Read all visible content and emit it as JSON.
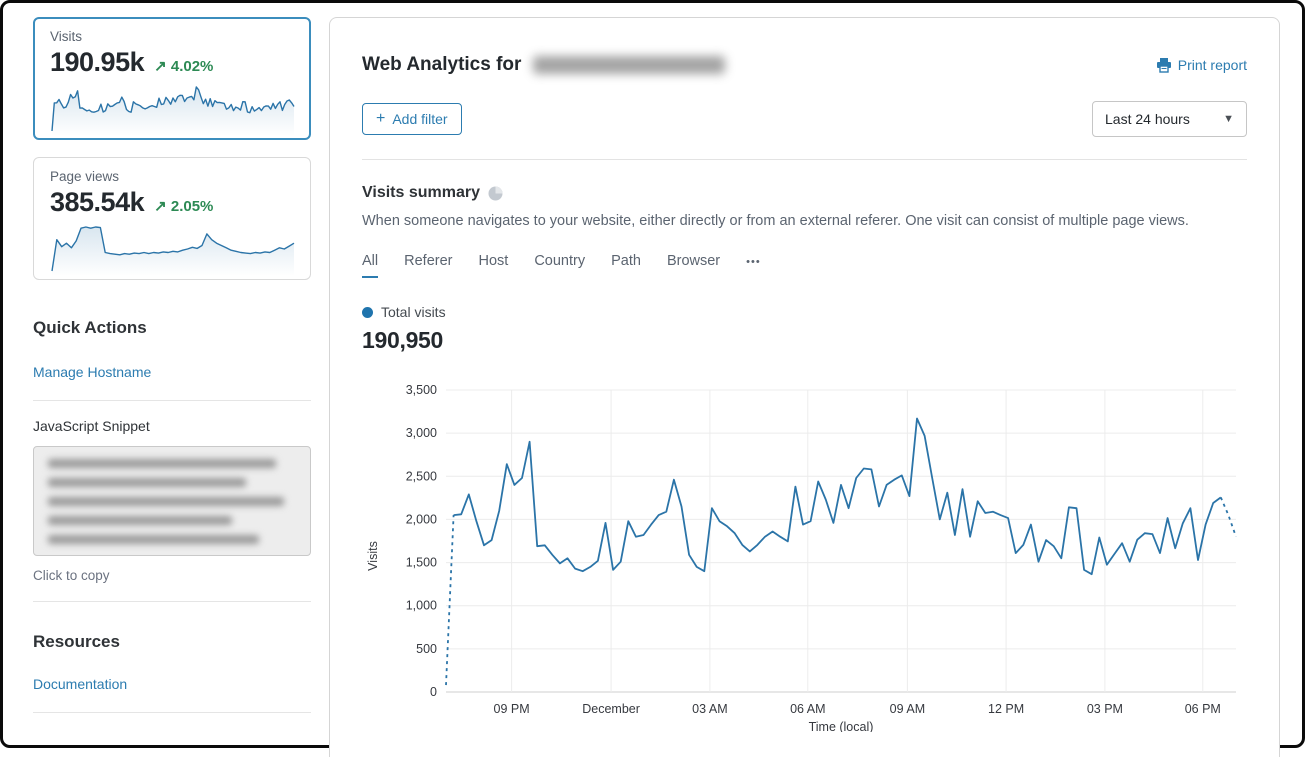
{
  "colors": {
    "line": "#2b74a8",
    "selected_border": "#3b8dbd",
    "link_blue": "#2c7cb0",
    "delta_green": "#2d8a54",
    "legend_dot": "#1f74ad",
    "grid": "#ececec"
  },
  "sidebar": {
    "visits_card": {
      "label": "Visits",
      "value": "190.95k",
      "delta_arrow": "↗",
      "delta": "4.02%"
    },
    "pageviews_card": {
      "label": "Page views",
      "value": "385.54k",
      "delta_arrow": "↗",
      "delta": "2.05%"
    },
    "quick_actions_title": "Quick Actions",
    "manage_hostname": "Manage Hostname",
    "js_snippet_label": "JavaScript Snippet",
    "click_to_copy": "Click to copy",
    "resources_title": "Resources",
    "documentation": "Documentation",
    "pageviews_sparkline": [
      4,
      58,
      46,
      52,
      44,
      56,
      78,
      80,
      78,
      80,
      79,
      36,
      34,
      33,
      32,
      34,
      33,
      35,
      34,
      36,
      34,
      36,
      35,
      37,
      36,
      38,
      37,
      40,
      42,
      45,
      43,
      48,
      68,
      58,
      52,
      48,
      44,
      40,
      38,
      36,
      35,
      34,
      36,
      35,
      37,
      36,
      40,
      44,
      42,
      47,
      52
    ]
  },
  "header": {
    "title": "Web Analytics for",
    "print_report": "Print report",
    "add_filter_plus": "+",
    "add_filter": "Add filter",
    "time_range": "Last 24 hours"
  },
  "summary": {
    "title": "Visits summary",
    "description": "When someone navigates to your website, either directly or from an external referer. One visit can consist of multiple page views.",
    "tabs": [
      "All",
      "Referer",
      "Host",
      "Country",
      "Path",
      "Browser"
    ],
    "active_tab": "All",
    "tabs_more": "•••",
    "legend": "Total visits",
    "total": "190,950"
  },
  "chart_data": {
    "type": "line",
    "title": "Visits summary",
    "ylabel": "Visits",
    "xlabel": "Time (local)",
    "ylim": [
      0,
      3500
    ],
    "yticks": [
      0,
      500,
      1000,
      1500,
      2000,
      2500,
      3000,
      3500
    ],
    "xtick_labels": [
      "09 PM",
      "December",
      "03 AM",
      "06 AM",
      "09 AM",
      "12 PM",
      "03 PM",
      "06 PM"
    ],
    "xtick_positions": [
      0.083,
      0.209,
      0.334,
      0.458,
      0.584,
      0.709,
      0.834,
      0.958
    ],
    "grid": true,
    "legend": "Total visits",
    "series_name": "Total visits",
    "dashed_start": 2,
    "dashed_end": 3,
    "values": [
      80,
      2050,
      2060,
      2290,
      1980,
      1700,
      1760,
      2100,
      2640,
      2400,
      2480,
      2900,
      1690,
      1700,
      1590,
      1490,
      1550,
      1430,
      1400,
      1450,
      1520,
      1960,
      1415,
      1510,
      1980,
      1800,
      1820,
      1940,
      2050,
      2090,
      2460,
      2150,
      1590,
      1450,
      1400,
      2130,
      1980,
      1920,
      1840,
      1705,
      1630,
      1705,
      1800,
      1860,
      1800,
      1745,
      2380,
      1940,
      1980,
      2440,
      2230,
      1960,
      2400,
      2130,
      2480,
      2590,
      2580,
      2150,
      2400,
      2460,
      2510,
      2270,
      3170,
      2970,
      2480,
      2000,
      2310,
      1820,
      2350,
      1800,
      2210,
      2075,
      2090,
      2050,
      2015,
      1610,
      1705,
      1940,
      1510,
      1760,
      1690,
      1550,
      2140,
      2130,
      1415,
      1365,
      1790,
      1475,
      1600,
      1725,
      1510,
      1765,
      1840,
      1830,
      1610,
      2015,
      1665,
      1955,
      2130,
      1530,
      1940,
      2190,
      2255,
      2050,
      1800
    ]
  }
}
